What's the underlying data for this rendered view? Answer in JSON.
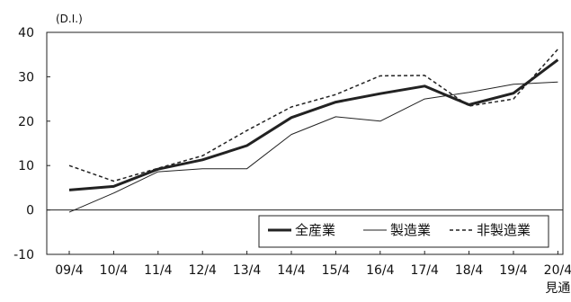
{
  "chart_data": {
    "type": "line",
    "unit_label": "(D.I.)",
    "categories": [
      "09/4",
      "10/4",
      "11/4",
      "12/4",
      "13/4",
      "14/4",
      "15/4",
      "16/4",
      "17/4",
      "18/4",
      "19/4",
      "20/4"
    ],
    "last_category_note": "見通",
    "ylim": [
      -10,
      40
    ],
    "yticks": [
      -10,
      0,
      10,
      20,
      30,
      40
    ],
    "grid": false,
    "legend_position": "bottom-right",
    "series": [
      {
        "name": "全産業",
        "style": "thick-solid",
        "color": "#222222",
        "values": [
          4.5,
          5.3,
          9.2,
          11.3,
          14.5,
          20.8,
          24.3,
          26.2,
          27.9,
          23.7,
          26.3,
          33.8
        ]
      },
      {
        "name": "製造業",
        "style": "thin-solid",
        "color": "#222222",
        "values": [
          -0.5,
          3.8,
          8.6,
          9.3,
          9.3,
          17.0,
          21.0,
          20.0,
          25.0,
          26.5,
          28.3,
          28.8
        ]
      },
      {
        "name": "非製造業",
        "style": "dashed",
        "color": "#222222",
        "values": [
          10.0,
          6.5,
          9.4,
          12.2,
          17.9,
          23.2,
          26.0,
          30.2,
          30.3,
          23.4,
          25.0,
          36.2
        ]
      }
    ]
  }
}
